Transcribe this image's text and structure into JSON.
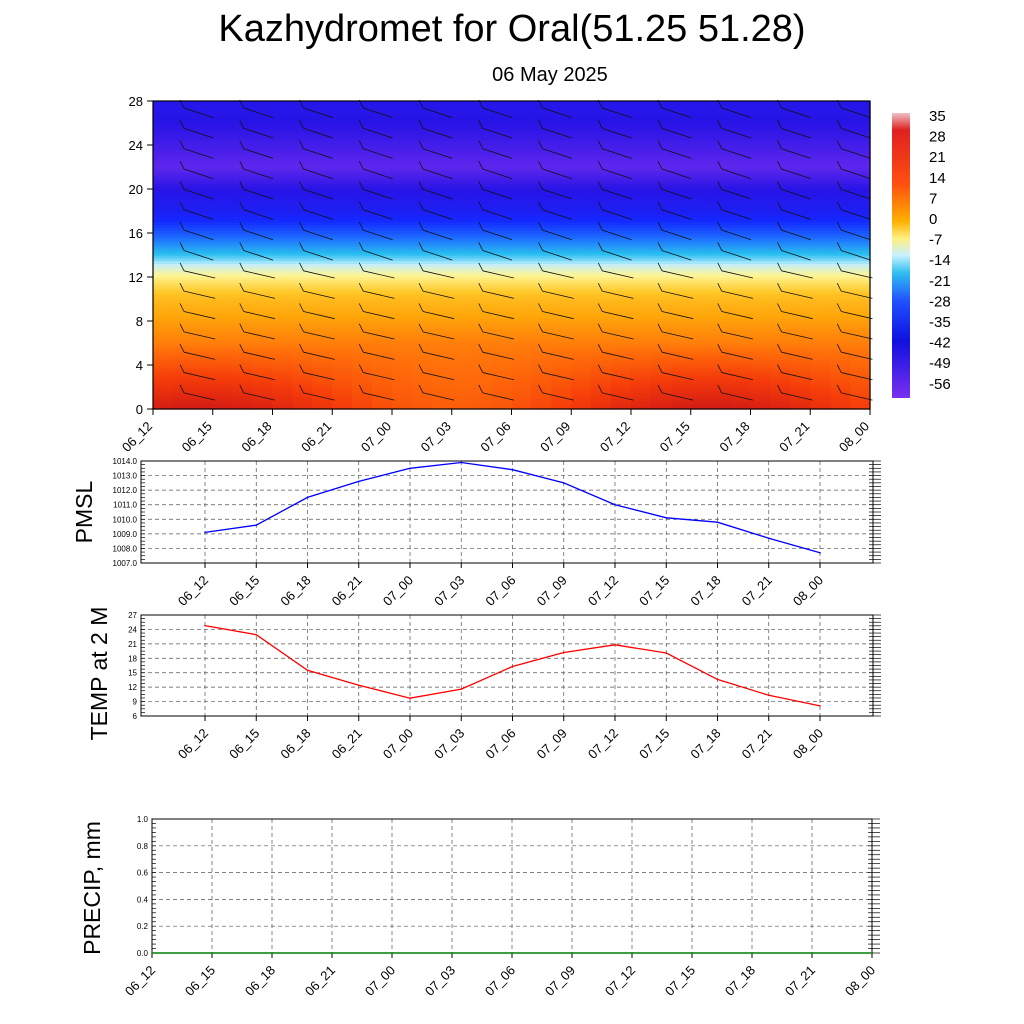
{
  "title": "Kazhydromet for Oral(51.25 51.28)",
  "subtitle": "06 May 2025",
  "chart_data": [
    {
      "type": "heatmap",
      "name": "upper-air-temperature",
      "x_ticks": [
        "06_12",
        "06_15",
        "06_18",
        "06_21",
        "07_00",
        "07_03",
        "07_06",
        "07_09",
        "07_12",
        "07_15",
        "07_18",
        "07_21",
        "08_00"
      ],
      "ylim": [
        0,
        28
      ],
      "y_ticks": [
        0,
        4,
        8,
        12,
        16,
        20,
        24,
        28
      ],
      "colorbar_labels": [
        "35",
        "28",
        "21",
        "14",
        "7",
        "0",
        "-7",
        "-14",
        "-21",
        "-28",
        "-35",
        "-42",
        "-49",
        "-56"
      ],
      "vertical_profile": [
        {
          "level": 0,
          "value": 22
        },
        {
          "level": 2,
          "value": 18
        },
        {
          "level": 4,
          "value": 14
        },
        {
          "level": 6,
          "value": 10
        },
        {
          "level": 8,
          "value": 6
        },
        {
          "level": 10,
          "value": 1
        },
        {
          "level": 12,
          "value": -8
        },
        {
          "level": 13,
          "value": -14
        },
        {
          "level": 14,
          "value": -24
        },
        {
          "level": 16,
          "value": -38
        },
        {
          "level": 18,
          "value": -50
        },
        {
          "level": 20,
          "value": -56
        },
        {
          "level": 22,
          "value": -60
        },
        {
          "level": 24,
          "value": -58
        },
        {
          "level": 26,
          "value": -56
        },
        {
          "level": 28,
          "value": -54
        }
      ],
      "wind_barbs": true
    },
    {
      "type": "line",
      "name": "pmsl",
      "ylabel": "PMSL",
      "x": [
        "06_12",
        "06_15",
        "06_18",
        "06_21",
        "07_00",
        "07_03",
        "07_06",
        "07_09",
        "07_12",
        "07_15",
        "07_18",
        "07_21",
        "08_00"
      ],
      "values": [
        1009.1,
        1009.6,
        1011.5,
        1012.6,
        1013.5,
        1013.9,
        1013.4,
        1012.5,
        1011.0,
        1010.1,
        1009.8,
        1008.7,
        1007.7
      ],
      "ylim": [
        1007.0,
        1014.0
      ],
      "y_ticks": [
        "1007.0",
        "1008.0",
        "1009.0",
        "1010.0",
        "1011.0",
        "1012.0",
        "1013.0",
        "1014.0"
      ],
      "color": "#0000ff",
      "grid": true
    },
    {
      "type": "line",
      "name": "temp-2m",
      "ylabel": "TEMP at 2 M",
      "x": [
        "06_12",
        "06_15",
        "06_18",
        "06_21",
        "07_00",
        "07_03",
        "07_06",
        "07_09",
        "07_12",
        "07_15",
        "07_18",
        "07_21",
        "08_00"
      ],
      "values": [
        24.8,
        22.9,
        15.5,
        12.4,
        9.7,
        11.6,
        16.3,
        19.2,
        20.8,
        19.1,
        13.6,
        10.3,
        8.1
      ],
      "ylim": [
        6,
        27
      ],
      "y_ticks": [
        "6",
        "9",
        "12",
        "15",
        "18",
        "21",
        "24",
        "27"
      ],
      "color": "#ff0000",
      "grid": true
    },
    {
      "type": "bar",
      "name": "precip",
      "ylabel": "PRECIP, mm",
      "x": [
        "06_12",
        "06_15",
        "06_18",
        "06_21",
        "07_00",
        "07_03",
        "07_06",
        "07_09",
        "07_12",
        "07_15",
        "07_18",
        "07_21",
        "08_00"
      ],
      "values": [
        0,
        0,
        0,
        0,
        0,
        0,
        0,
        0,
        0,
        0,
        0,
        0,
        0
      ],
      "ylim": [
        0,
        1.0
      ],
      "y_ticks": [
        "0.0",
        "0.2",
        "0.4",
        "0.6",
        "0.8",
        "1.0"
      ],
      "color": "#008000",
      "grid": true
    }
  ]
}
